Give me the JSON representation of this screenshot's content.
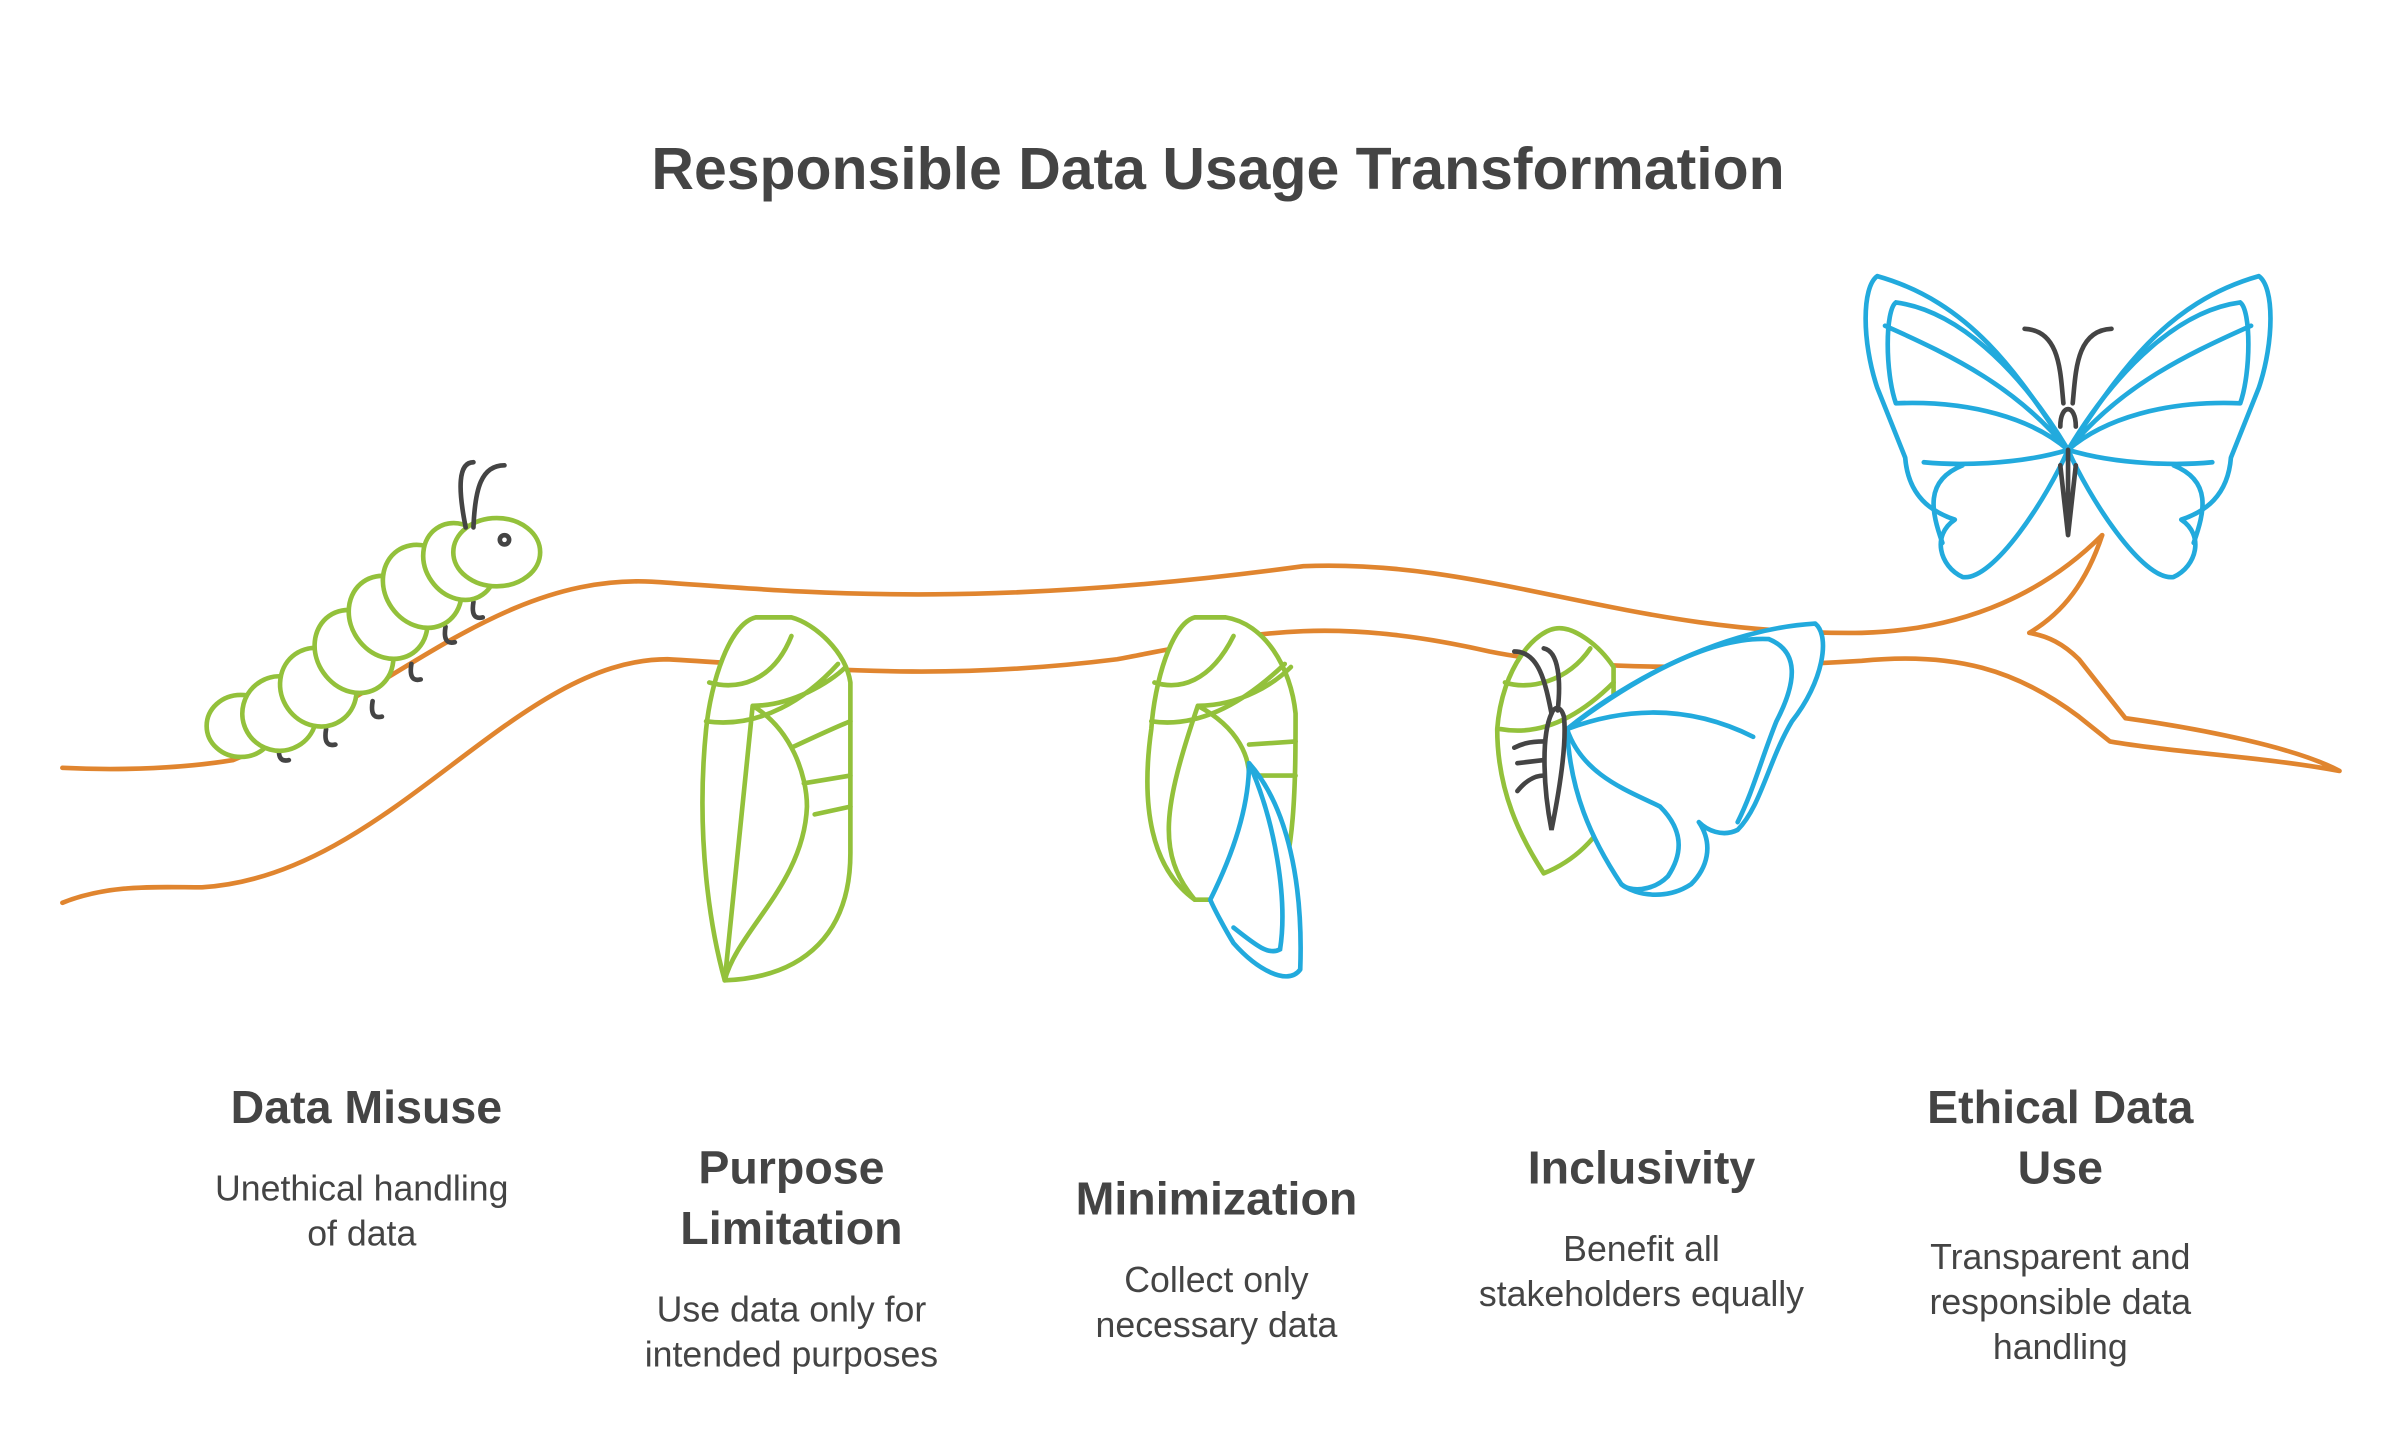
{
  "title": "Responsible Data Usage Transformation",
  "colors": {
    "branch": "#e0852f",
    "larva": "#93c13b",
    "butterfly": "#22aadd",
    "text": "#444444"
  },
  "stages": [
    {
      "title_lines": [
        "Data Misuse"
      ],
      "desc_lines": [
        "Unethical handling",
        "of data"
      ],
      "icon": "caterpillar-icon"
    },
    {
      "title_lines": [
        "Purpose",
        "Limitation"
      ],
      "desc_lines": [
        "Use data only for",
        "intended purposes"
      ],
      "icon": "chrysalis-icon"
    },
    {
      "title_lines": [
        "Minimization"
      ],
      "desc_lines": [
        "Collect only",
        "necessary data"
      ],
      "icon": "chrysalis-wing-icon"
    },
    {
      "title_lines": [
        "Inclusivity"
      ],
      "desc_lines": [
        "Benefit all",
        "stakeholders equally"
      ],
      "icon": "emerging-butterfly-icon"
    },
    {
      "title_lines": [
        "Ethical Data",
        "Use"
      ],
      "desc_lines": [
        "Transparent and",
        "responsible data",
        "handling"
      ],
      "icon": "butterfly-icon"
    }
  ]
}
